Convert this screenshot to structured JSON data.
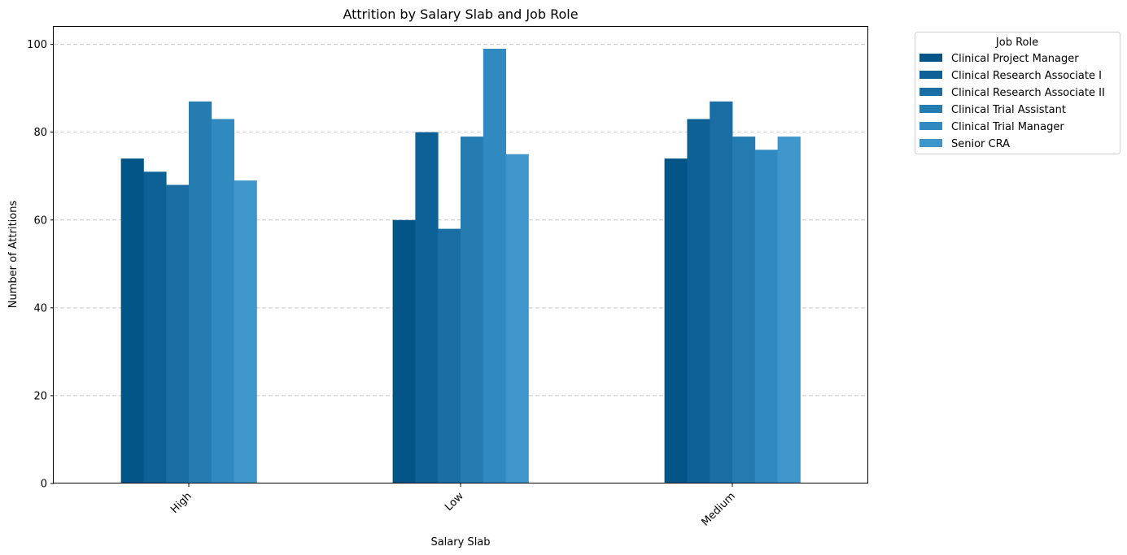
{
  "chart_data": {
    "type": "bar",
    "title": "Attrition by Salary Slab and Job Role",
    "xlabel": "Salary Slab",
    "ylabel": "Number of Attritions",
    "ylim": [
      0,
      104
    ],
    "yticks": [
      0,
      20,
      40,
      60,
      80,
      100
    ],
    "grid": "y, dashed",
    "legend_position": "outside top-right",
    "legend_title": "Job Role",
    "categories": [
      "High",
      "Low",
      "Medium"
    ],
    "series": [
      {
        "name": "Clinical Project Manager",
        "color": "#045587",
        "values": [
          74,
          60,
          74
        ]
      },
      {
        "name": "Clinical Research Associate I",
        "color": "#0e6196",
        "values": [
          71,
          80,
          83
        ]
      },
      {
        "name": "Clinical Research Associate II",
        "color": "#1a6ea3",
        "values": [
          68,
          58,
          87
        ]
      },
      {
        "name": "Clinical Trial Assistant",
        "color": "#257cb0",
        "values": [
          87,
          79,
          79
        ]
      },
      {
        "name": "Clinical Trial Manager",
        "color": "#3089bf",
        "values": [
          83,
          99,
          76
        ]
      },
      {
        "name": "Senior CRA",
        "color": "#3f96cb",
        "values": [
          69,
          75,
          79
        ]
      }
    ]
  }
}
